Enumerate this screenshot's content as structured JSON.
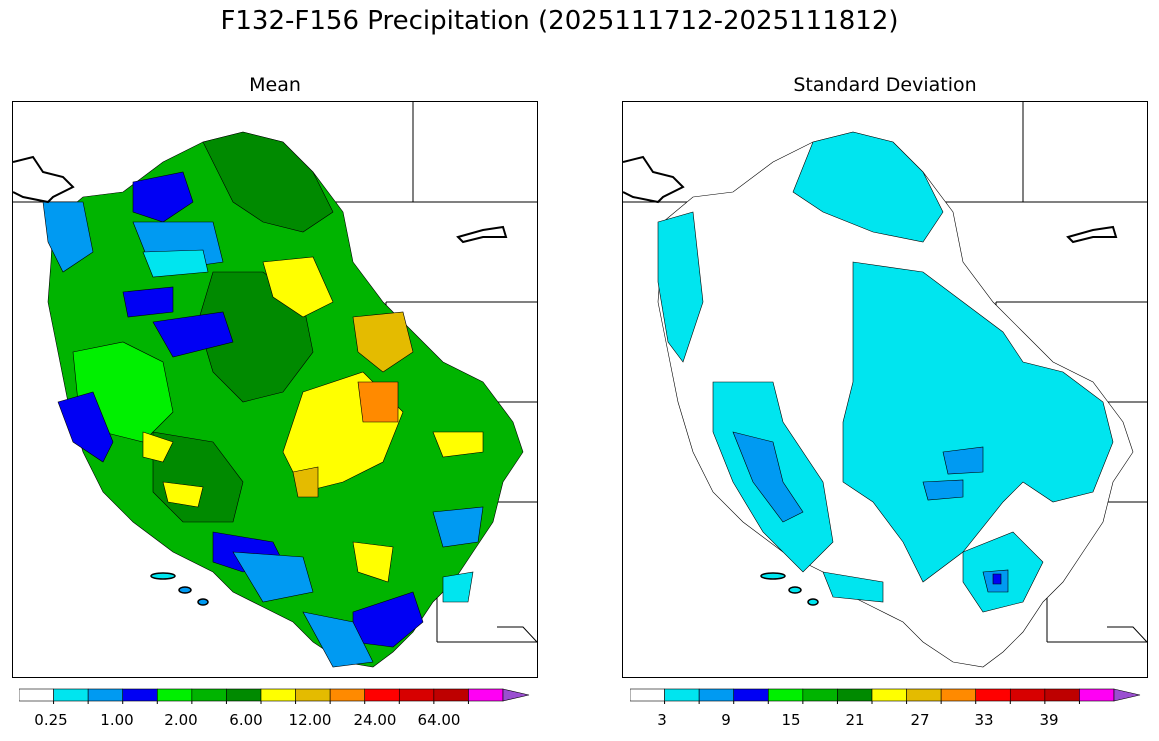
{
  "title": "F132-F156 Precipitation (2025111712-2025111812)",
  "panels": [
    {
      "id": "mean",
      "title": "Mean"
    },
    {
      "id": "std",
      "title": "Standard Deviation"
    }
  ],
  "colors": {
    "white": "#ffffff",
    "cyan": "#00e5ef",
    "sky": "#009af2",
    "blue": "#0000f4",
    "lime": "#00f000",
    "green": "#00b400",
    "dkgreen": "#008a00",
    "yellow": "#ffff00",
    "gold": "#e4bb00",
    "orange": "#ff8a00",
    "red": "#ff0000",
    "red2": "#d70000",
    "red3": "#be0000",
    "magenta": "#ff00f4",
    "purple": "#9a4fd0"
  },
  "colorbars": [
    {
      "panel": "mean",
      "colors": [
        "#ffffff",
        "#00e5ef",
        "#009af2",
        "#0000f4",
        "#00f000",
        "#00b400",
        "#008a00",
        "#ffff00",
        "#e4bb00",
        "#ff8a00",
        "#ff0000",
        "#d70000",
        "#be0000",
        "#ff00f4",
        "#9a4fd0"
      ],
      "tick_labels": [
        "0.25",
        "1.00",
        "2.00",
        "6.00",
        "12.00",
        "24.00",
        "64.00"
      ],
      "extend": "max"
    },
    {
      "panel": "std",
      "colors": [
        "#ffffff",
        "#00e5ef",
        "#009af2",
        "#0000f4",
        "#00f000",
        "#00b400",
        "#008a00",
        "#ffff00",
        "#e4bb00",
        "#ff8a00",
        "#ff0000",
        "#d70000",
        "#be0000",
        "#ff00f4",
        "#9a4fd0"
      ],
      "tick_labels": [
        "3",
        "9",
        "15",
        "21",
        "27",
        "33",
        "39"
      ],
      "extend": "max"
    }
  ]
}
